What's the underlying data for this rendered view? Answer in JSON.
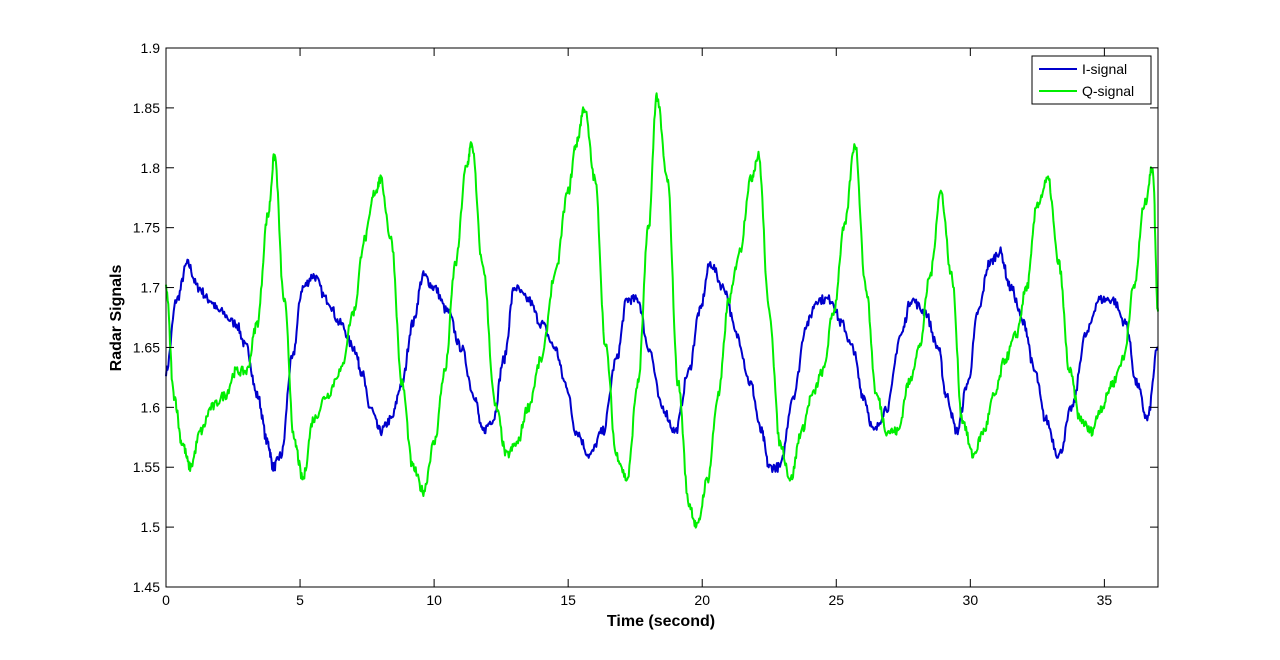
{
  "chart_data": {
    "type": "line",
    "xlabel": "Time (second)",
    "ylabel": "Radar Signals",
    "xlim": [
      0,
      37
    ],
    "ylim": [
      1.45,
      1.9
    ],
    "xticks": [
      0,
      5,
      10,
      15,
      20,
      25,
      30,
      35
    ],
    "xtick_labels": [
      "0",
      "5",
      "10",
      "15",
      "20",
      "25",
      "30",
      "35"
    ],
    "yticks": [
      1.45,
      1.5,
      1.55,
      1.6,
      1.65,
      1.7,
      1.75,
      1.8,
      1.85,
      1.9
    ],
    "ytick_labels": [
      "1.45",
      "1.5",
      "1.55",
      "1.6",
      "1.65",
      "1.7",
      "1.75",
      "1.8",
      "1.85",
      "1.9"
    ],
    "grid": false,
    "legend_position": "top-right",
    "series": [
      {
        "name": "I-signal",
        "color": "#0000cc",
        "x": [
          0,
          0.4,
          0.8,
          1.2,
          1.6,
          2,
          2.6,
          3.0,
          3.4,
          3.8,
          4.0,
          4.3,
          4.7,
          5.1,
          5.5,
          6.0,
          6.5,
          7.0,
          7.3,
          7.6,
          8.0,
          8.4,
          8.8,
          9.2,
          9.6,
          10,
          10.5,
          11,
          11.5,
          11.8,
          12.2,
          12.6,
          13,
          13.5,
          14,
          14.5,
          14.9,
          15.3,
          15.8,
          16.3,
          16.8,
          17.2,
          17.6,
          18,
          18.5,
          19,
          19.5,
          19.9,
          20.3,
          20.8,
          21.3,
          21.8,
          22.2,
          22.5,
          22.9,
          23.4,
          23.9,
          24.3,
          24.8,
          25.2,
          25.6,
          26,
          26.4,
          26.9,
          27.4,
          27.8,
          28.3,
          28.8,
          29.1,
          29.5,
          29.9,
          30.3,
          30.7,
          31.1,
          31.5,
          32.0,
          32.4,
          32.8,
          33.3,
          33.8,
          34.3,
          34.8,
          35.3,
          35.8,
          36.2,
          36.6,
          37
        ],
        "y": [
          1.63,
          1.69,
          1.72,
          1.7,
          1.69,
          1.68,
          1.67,
          1.65,
          1.61,
          1.57,
          1.55,
          1.56,
          1.64,
          1.7,
          1.71,
          1.69,
          1.67,
          1.65,
          1.63,
          1.6,
          1.58,
          1.59,
          1.62,
          1.67,
          1.71,
          1.7,
          1.68,
          1.65,
          1.61,
          1.58,
          1.59,
          1.64,
          1.7,
          1.69,
          1.67,
          1.65,
          1.62,
          1.58,
          1.56,
          1.58,
          1.64,
          1.69,
          1.69,
          1.65,
          1.6,
          1.58,
          1.63,
          1.68,
          1.72,
          1.7,
          1.66,
          1.62,
          1.58,
          1.55,
          1.55,
          1.61,
          1.67,
          1.69,
          1.69,
          1.67,
          1.65,
          1.61,
          1.58,
          1.6,
          1.66,
          1.69,
          1.68,
          1.65,
          1.61,
          1.58,
          1.62,
          1.68,
          1.72,
          1.73,
          1.7,
          1.67,
          1.63,
          1.59,
          1.56,
          1.6,
          1.66,
          1.69,
          1.69,
          1.67,
          1.62,
          1.59,
          1.65
        ]
      },
      {
        "name": "Q-signal",
        "color": "#00ee00",
        "x": [
          0,
          0.3,
          0.6,
          0.9,
          1.3,
          1.7,
          2.2,
          2.6,
          3.0,
          3.4,
          3.8,
          4.05,
          4.4,
          4.8,
          5.1,
          5.5,
          6.0,
          6.5,
          7.0,
          7.4,
          7.8,
          8.0,
          8.4,
          8.8,
          9.2,
          9.6,
          10.0,
          10.4,
          10.8,
          11.2,
          11.4,
          11.8,
          12.3,
          12.7,
          13.1,
          13.5,
          14,
          14.5,
          15.0,
          15.3,
          15.6,
          16.0,
          16.4,
          16.8,
          17.2,
          17.6,
          18.0,
          18.3,
          18.7,
          19.1,
          19.5,
          19.8,
          20.2,
          20.6,
          21,
          21.4,
          21.8,
          22.1,
          22.5,
          22.9,
          23.3,
          23.7,
          24.1,
          24.5,
          24.9,
          25.3,
          25.7,
          26.1,
          26.5,
          26.9,
          27.3,
          27.7,
          28.1,
          28.5,
          28.9,
          29.3,
          29.7,
          30.1,
          30.5,
          30.9,
          31.3,
          31.7,
          32.1,
          32.5,
          32.9,
          33.3,
          33.7,
          34.1,
          34.5,
          34.9,
          35.3,
          35.7,
          36.1,
          36.5,
          36.8,
          37
        ],
        "y": [
          1.7,
          1.61,
          1.57,
          1.55,
          1.58,
          1.6,
          1.61,
          1.63,
          1.63,
          1.67,
          1.76,
          1.81,
          1.69,
          1.57,
          1.54,
          1.59,
          1.61,
          1.63,
          1.68,
          1.74,
          1.78,
          1.79,
          1.74,
          1.62,
          1.55,
          1.53,
          1.57,
          1.63,
          1.72,
          1.8,
          1.82,
          1.72,
          1.6,
          1.56,
          1.57,
          1.6,
          1.64,
          1.71,
          1.78,
          1.82,
          1.85,
          1.79,
          1.65,
          1.56,
          1.54,
          1.62,
          1.75,
          1.86,
          1.79,
          1.62,
          1.52,
          1.5,
          1.54,
          1.61,
          1.69,
          1.73,
          1.79,
          1.81,
          1.68,
          1.57,
          1.54,
          1.58,
          1.61,
          1.63,
          1.68,
          1.75,
          1.82,
          1.7,
          1.61,
          1.58,
          1.58,
          1.62,
          1.65,
          1.71,
          1.78,
          1.71,
          1.59,
          1.56,
          1.58,
          1.61,
          1.64,
          1.66,
          1.7,
          1.77,
          1.79,
          1.72,
          1.63,
          1.59,
          1.58,
          1.6,
          1.62,
          1.64,
          1.7,
          1.77,
          1.8,
          1.68
        ]
      }
    ]
  }
}
